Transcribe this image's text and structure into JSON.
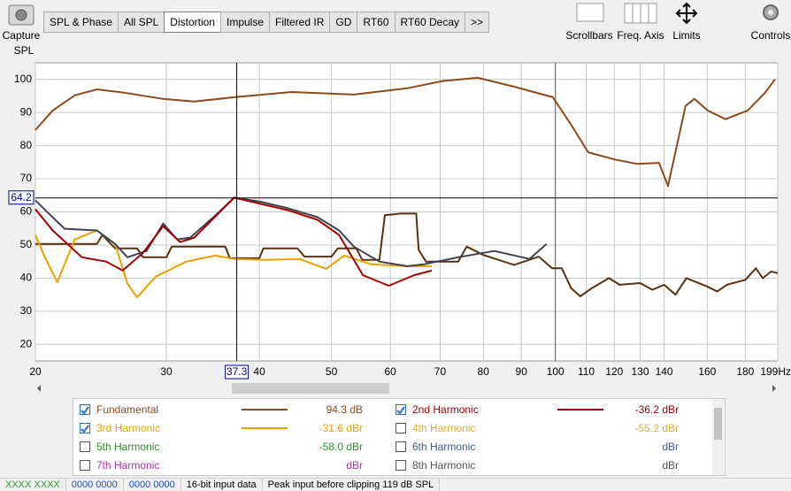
{
  "toolbar": {
    "capture": "Capture",
    "tabs": [
      "SPL & Phase",
      "All SPL",
      "Distortion",
      "Impulse",
      "Filtered IR",
      "GD",
      "RT60",
      "RT60 Decay",
      ">>"
    ],
    "active_tab": 2,
    "tools": [
      "Scrollbars",
      "Freq. Axis",
      "Limits",
      "Controls"
    ]
  },
  "chart_data": {
    "type": "line",
    "y_label": "SPL",
    "log_x": true,
    "grid": true,
    "xlim": [
      20,
      199
    ],
    "ylim": [
      15,
      105
    ],
    "xticks": [
      20,
      30,
      40,
      50,
      60,
      70,
      80,
      90,
      100,
      110,
      120,
      130,
      140,
      160,
      180,
      {
        "value": 199,
        "label": "199Hz"
      }
    ],
    "yticks": [
      20,
      30,
      40,
      50,
      60,
      70,
      80,
      90,
      100
    ],
    "cursor": {
      "x": 37.3,
      "y": 64.2
    },
    "series": [
      {
        "color": "#5a3010",
        "x": [
          20,
          24.2,
          24.6,
          25.6,
          27.4,
          27.9,
          30,
          30.5,
          36,
          36.5,
          40,
          40.5,
          45,
          46,
          50,
          51,
          54,
          55,
          58,
          59,
          62,
          65,
          65.5,
          67,
          74,
          76,
          80,
          88,
          95,
          99,
          102,
          105,
          108,
          112,
          118,
          122,
          130,
          135,
          140,
          145,
          150,
          160,
          165,
          170,
          180,
          186,
          190,
          195,
          199
        ],
        "values": [
          50.3,
          50.3,
          53,
          49,
          49,
          46.3,
          46.3,
          49.5,
          49.5,
          46,
          46,
          49,
          49,
          46.5,
          46.5,
          49,
          49,
          45.5,
          45.5,
          59,
          59.5,
          59.5,
          48.5,
          45,
          45,
          49.5,
          47,
          44,
          46.5,
          43,
          43,
          37,
          34.5,
          37,
          40,
          38,
          38.5,
          36.5,
          38,
          35,
          40,
          37.5,
          36,
          38,
          39.5,
          43,
          40,
          42,
          41.5
        ]
      },
      {
        "color": "#e8a200",
        "x": [
          20,
          20.6,
          21.4,
          22.6,
          24.2,
          25.6,
          26.6,
          27.4,
          29,
          31.9,
          34.9,
          37,
          40.8,
          45.3,
          49.2,
          52,
          56.6,
          63.2,
          68.2
        ],
        "values": [
          53,
          46.3,
          38.8,
          51.7,
          54.4,
          50.3,
          38.3,
          34.2,
          40.4,
          45,
          46.8,
          45.8,
          45.5,
          45.8,
          42.8,
          46.8,
          44.2,
          43.6,
          43.6
        ]
      },
      {
        "color": "#404050",
        "x": [
          20,
          20.8,
          21.9,
          24.2,
          25.6,
          26.6,
          28.2,
          29.7,
          31,
          32.3,
          34.9,
          37,
          40.3,
          43.7,
          47.9,
          51.2,
          53.6,
          58,
          63.2,
          66.6,
          74,
          82.8,
          92.3,
          97.3
        ],
        "values": [
          63.5,
          59.7,
          54.9,
          54.4,
          50.3,
          46.3,
          48.2,
          56.5,
          51.7,
          52.2,
          58.9,
          64.3,
          63,
          61.1,
          58.4,
          54.4,
          49.5,
          45,
          43.6,
          44.2,
          46.3,
          48.2,
          45.8,
          50.3
        ]
      },
      {
        "color": "#a00000",
        "x": [
          20,
          21.1,
          23.1,
          24.9,
          26.2,
          27.9,
          29.7,
          31.3,
          32.7,
          35.3,
          37,
          43.7,
          47.9,
          51.2,
          55.1,
          59.7,
          64.6,
          68.2
        ],
        "values": [
          60.8,
          54.4,
          46.3,
          45,
          42.3,
          47.6,
          55.7,
          50.9,
          52.2,
          59.7,
          64.3,
          60.5,
          57.6,
          53,
          40.9,
          37.7,
          40.9,
          42.3
        ]
      },
      {
        "color": "#8b4a1c",
        "x": [
          20,
          21.1,
          22.6,
          24.2,
          26.3,
          29.7,
          32.7,
          37,
          44.2,
          53.6,
          63.2,
          70.5,
          78.6,
          87.7,
          99.2,
          104.8,
          110.7,
          120.2,
          128.7,
          137.8,
          141.7,
          149.6,
          153.8,
          160.2,
          169.3,
          181.3,
          191.4,
          197.3
        ],
        "values": [
          84.7,
          90.6,
          95.2,
          97,
          96,
          94.1,
          93.3,
          94.6,
          96.2,
          95.4,
          97.3,
          99.5,
          100.5,
          97.9,
          94.6,
          86.6,
          78,
          75.8,
          74.5,
          74.8,
          67.8,
          92,
          94.1,
          90.6,
          88,
          90.6,
          96,
          100
        ]
      }
    ]
  },
  "legend": {
    "items": [
      {
        "name": "Fundamental",
        "reading": "94.3 dB",
        "checked": true,
        "color": "#8b4a1c"
      },
      {
        "name": "2nd Harmonic",
        "reading": "-36.2 dBr",
        "checked": true,
        "color": "#a00000"
      },
      {
        "name": "3rd Harmonic",
        "reading": "-31.6 dBr",
        "checked": true,
        "color": "#e8a200"
      },
      {
        "name": "4th Harmonic",
        "reading": "-55.2 dBr",
        "checked": false,
        "color": "#d8b030"
      },
      {
        "name": "5th Harmonic",
        "reading": "-58.0 dBr",
        "checked": false,
        "color": "#2e8b2e"
      },
      {
        "name": "6th Harmonic",
        "reading": "dBr",
        "checked": false,
        "color": "#3a5a9a"
      },
      {
        "name": "7th Harmonic",
        "reading": "dBr",
        "checked": false,
        "color": "#b030b0"
      },
      {
        "name": "8th Harmonic",
        "reading": "dBr",
        "checked": false,
        "color": "#555555"
      }
    ]
  },
  "status_bar": [
    "XXXX XXXX",
    "0000 0000",
    "0000 0000",
    "16-bit input data",
    "Peak input before clipping 119 dB SPL"
  ]
}
